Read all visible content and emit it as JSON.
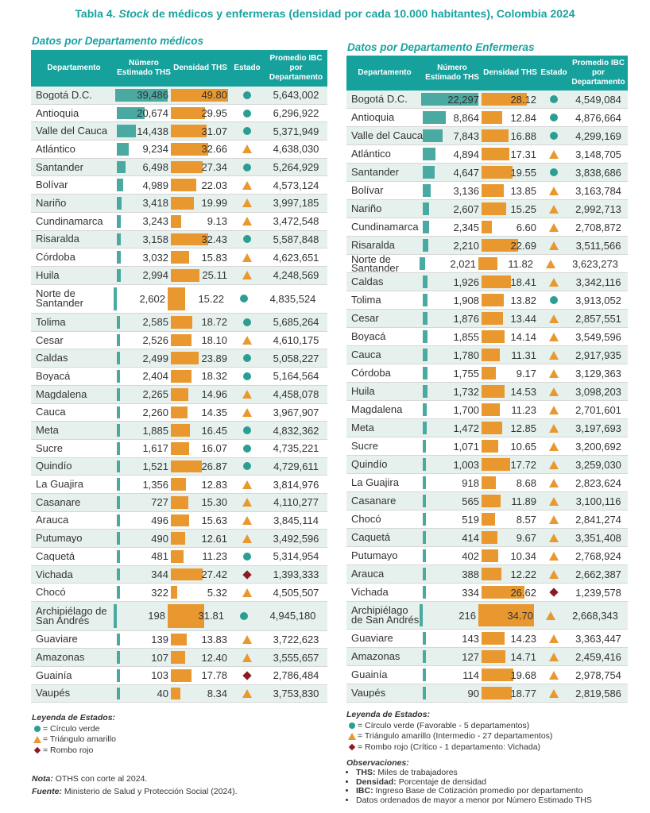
{
  "title": {
    "prefix": "Tabla 4.",
    "italic": "Stock",
    "rest": "de médicos y enfermeras (densidad por cada 10.000 habitantes), Colombia 2024"
  },
  "colors": {
    "teal": "#16a19d",
    "bar_teal": "#4aa9a1",
    "bar_orange": "#e9982f",
    "verde": "#2a9e93",
    "amarillo": "#e9982f",
    "rojo": "#8b1b22"
  },
  "medicos": {
    "subtitle": "Datos por Departamento médicos",
    "headers": {
      "dep": "Departamento",
      "num": "Número Estimado THS",
      "den": "Densidad THS",
      "est": "Estado",
      "ibc": "Promedio IBC por Departamento"
    },
    "max_num": 39486,
    "max_den": 49.8,
    "rows": [
      {
        "dep": "Bogotá D.C.",
        "num": "39,486",
        "n": 39486,
        "den": "49.80",
        "d": 49.8,
        "est": "circulo",
        "ibc": "5,643,002"
      },
      {
        "dep": "Antioquia",
        "num": "20,674",
        "n": 20674,
        "den": "29.95",
        "d": 29.95,
        "est": "circulo",
        "ibc": "6,296,922"
      },
      {
        "dep": "Valle del Cauca",
        "num": "14,438",
        "n": 14438,
        "den": "31.07",
        "d": 31.07,
        "est": "circulo",
        "ibc": "5,371,949"
      },
      {
        "dep": "Atlántico",
        "num": "9,234",
        "n": 9234,
        "den": "32.66",
        "d": 32.66,
        "est": "triangulo",
        "ibc": "4,638,030"
      },
      {
        "dep": "Santander",
        "num": "6,498",
        "n": 6498,
        "den": "27.34",
        "d": 27.34,
        "est": "circulo",
        "ibc": "5,264,929"
      },
      {
        "dep": "Bolívar",
        "num": "4,989",
        "n": 4989,
        "den": "22.03",
        "d": 22.03,
        "est": "triangulo",
        "ibc": "4,573,124"
      },
      {
        "dep": "Nariño",
        "num": "3,418",
        "n": 3418,
        "den": "19.99",
        "d": 19.99,
        "est": "triangulo",
        "ibc": "3,997,185"
      },
      {
        "dep": "Cundinamarca",
        "num": "3,243",
        "n": 3243,
        "den": "9.13",
        "d": 9.13,
        "est": "triangulo",
        "ibc": "3,472,548"
      },
      {
        "dep": "Risaralda",
        "num": "3,158",
        "n": 3158,
        "den": "32.43",
        "d": 32.43,
        "est": "circulo",
        "ibc": "5,587,848"
      },
      {
        "dep": "Córdoba",
        "num": "3,032",
        "n": 3032,
        "den": "15.83",
        "d": 15.83,
        "est": "triangulo",
        "ibc": "4,623,651"
      },
      {
        "dep": "Huila",
        "num": "2,994",
        "n": 2994,
        "den": "25.11",
        "d": 25.11,
        "est": "triangulo",
        "ibc": "4,248,569"
      },
      {
        "dep": "Norte de Santander",
        "num": "2,602",
        "n": 2602,
        "den": "15.22",
        "d": 15.22,
        "est": "circulo",
        "ibc": "4,835,524",
        "tall": true
      },
      {
        "dep": "Tolima",
        "num": "2,585",
        "n": 2585,
        "den": "18.72",
        "d": 18.72,
        "est": "circulo",
        "ibc": "5,685,264"
      },
      {
        "dep": "Cesar",
        "num": "2,526",
        "n": 2526,
        "den": "18.10",
        "d": 18.1,
        "est": "triangulo",
        "ibc": "4,610,175"
      },
      {
        "dep": "Caldas",
        "num": "2,499",
        "n": 2499,
        "den": "23.89",
        "d": 23.89,
        "est": "circulo",
        "ibc": "5,058,227"
      },
      {
        "dep": "Boyacá",
        "num": "2,404",
        "n": 2404,
        "den": "18.32",
        "d": 18.32,
        "est": "circulo",
        "ibc": "5,164,564"
      },
      {
        "dep": "Magdalena",
        "num": "2,265",
        "n": 2265,
        "den": "14.96",
        "d": 14.96,
        "est": "triangulo",
        "ibc": "4,458,078"
      },
      {
        "dep": "Cauca",
        "num": "2,260",
        "n": 2260,
        "den": "14.35",
        "d": 14.35,
        "est": "triangulo",
        "ibc": "3,967,907"
      },
      {
        "dep": "Meta",
        "num": "1,885",
        "n": 1885,
        "den": "16.45",
        "d": 16.45,
        "est": "circulo",
        "ibc": "4,832,362"
      },
      {
        "dep": "Sucre",
        "num": "1,617",
        "n": 1617,
        "den": "16.07",
        "d": 16.07,
        "est": "circulo",
        "ibc": "4,735,221"
      },
      {
        "dep": "Quindío",
        "num": "1,521",
        "n": 1521,
        "den": "26.87",
        "d": 26.87,
        "est": "circulo",
        "ibc": "4,729,611"
      },
      {
        "dep": "La Guajira",
        "num": "1,356",
        "n": 1356,
        "den": "12.83",
        "d": 12.83,
        "est": "triangulo",
        "ibc": "3,814,976"
      },
      {
        "dep": "Casanare",
        "num": "727",
        "n": 727,
        "den": "15.30",
        "d": 15.3,
        "est": "triangulo",
        "ibc": "4,110,277"
      },
      {
        "dep": "Arauca",
        "num": "496",
        "n": 496,
        "den": "15.63",
        "d": 15.63,
        "est": "triangulo",
        "ibc": "3,845,114"
      },
      {
        "dep": "Putumayo",
        "num": "490",
        "n": 490,
        "den": "12.61",
        "d": 12.61,
        "est": "triangulo",
        "ibc": "3,492,596"
      },
      {
        "dep": "Caquetá",
        "num": "481",
        "n": 481,
        "den": "11.23",
        "d": 11.23,
        "est": "circulo",
        "ibc": "5,314,954"
      },
      {
        "dep": "Vichada",
        "num": "344",
        "n": 344,
        "den": "27.42",
        "d": 27.42,
        "est": "rombo",
        "ibc": "1,393,333"
      },
      {
        "dep": "Chocó",
        "num": "322",
        "n": 322,
        "den": "5.32",
        "d": 5.32,
        "est": "triangulo",
        "ibc": "4,505,507"
      },
      {
        "dep": "Archipiélago de San Andrés",
        "num": "198",
        "n": 198,
        "den": "31.81",
        "d": 31.81,
        "est": "circulo",
        "ibc": "4,945,180",
        "tall": true
      },
      {
        "dep": "Guaviare",
        "num": "139",
        "n": 139,
        "den": "13.83",
        "d": 13.83,
        "est": "triangulo",
        "ibc": "3,722,623"
      },
      {
        "dep": "Amazonas",
        "num": "107",
        "n": 107,
        "den": "12.40",
        "d": 12.4,
        "est": "triangulo",
        "ibc": "3,555,657"
      },
      {
        "dep": "Guainía",
        "num": "103",
        "n": 103,
        "den": "17.78",
        "d": 17.78,
        "est": "rombo",
        "ibc": "2,786,484"
      },
      {
        "dep": "Vaupés",
        "num": "40",
        "n": 40,
        "den": "8.34",
        "d": 8.34,
        "est": "triangulo",
        "ibc": "3,753,830"
      }
    ],
    "legend": {
      "title": "Leyenda de Estados:",
      "verde": "= Círculo verde",
      "amarillo": "= Triángulo amarillo",
      "rojo": "= Rombo rojo"
    },
    "nota_label": "Nota:",
    "nota": "OTHS con corte al 2024.",
    "fuente_label": "Fuente:",
    "fuente": "Ministerio de Salud y Protección Social (2024)."
  },
  "enfermeras": {
    "subtitle": "Datos por Departamento Enfermeras",
    "headers": {
      "dep": "Departamento",
      "num": "Número Estimado THS",
      "den": "Densidad THS",
      "est": "Estado",
      "ibc": "Promedio IBC por Departamento"
    },
    "max_num": 22297,
    "max_den": 34.7,
    "rows": [
      {
        "dep": "Bogotá D.C.",
        "num": "22,297",
        "n": 22297,
        "den": "28.12",
        "d": 28.12,
        "est": "circulo",
        "ibc": "4,549,084"
      },
      {
        "dep": "Antioquia",
        "num": "8,864",
        "n": 8864,
        "den": "12.84",
        "d": 12.84,
        "est": "circulo",
        "ibc": "4,876,664"
      },
      {
        "dep": "Valle del Cauca",
        "num": "7,843",
        "n": 7843,
        "den": "16.88",
        "d": 16.88,
        "est": "circulo",
        "ibc": "4,299,169"
      },
      {
        "dep": "Atlántico",
        "num": "4,894",
        "n": 4894,
        "den": "17.31",
        "d": 17.31,
        "est": "triangulo",
        "ibc": "3,148,705"
      },
      {
        "dep": "Santander",
        "num": "4,647",
        "n": 4647,
        "den": "19.55",
        "d": 19.55,
        "est": "circulo",
        "ibc": "3,838,686"
      },
      {
        "dep": "Bolívar",
        "num": "3,136",
        "n": 3136,
        "den": "13.85",
        "d": 13.85,
        "est": "triangulo",
        "ibc": "3,163,784"
      },
      {
        "dep": "Nariño",
        "num": "2,607",
        "n": 2607,
        "den": "15.25",
        "d": 15.25,
        "est": "triangulo",
        "ibc": "2,992,713"
      },
      {
        "dep": "Cundinamarca",
        "num": "2,345",
        "n": 2345,
        "den": "6.60",
        "d": 6.6,
        "est": "triangulo",
        "ibc": "2,708,872"
      },
      {
        "dep": "Risaralda",
        "num": "2,210",
        "n": 2210,
        "den": "22.69",
        "d": 22.69,
        "est": "triangulo",
        "ibc": "3,511,566"
      },
      {
        "dep": "Norte de Santander",
        "num": "2,021",
        "n": 2021,
        "den": "11.82",
        "d": 11.82,
        "est": "triangulo",
        "ibc": "3,623,273",
        "tight": true
      },
      {
        "dep": "Caldas",
        "num": "1,926",
        "n": 1926,
        "den": "18.41",
        "d": 18.41,
        "est": "triangulo",
        "ibc": "3,342,116"
      },
      {
        "dep": "Tolima",
        "num": "1,908",
        "n": 1908,
        "den": "13.82",
        "d": 13.82,
        "est": "circulo",
        "ibc": "3,913,052"
      },
      {
        "dep": "Cesar",
        "num": "1,876",
        "n": 1876,
        "den": "13.44",
        "d": 13.44,
        "est": "triangulo",
        "ibc": "2,857,551"
      },
      {
        "dep": "Boyacá",
        "num": "1,855",
        "n": 1855,
        "den": "14.14",
        "d": 14.14,
        "est": "triangulo",
        "ibc": "3,549,596"
      },
      {
        "dep": "Cauca",
        "num": "1,780",
        "n": 1780,
        "den": "11.31",
        "d": 11.31,
        "est": "triangulo",
        "ibc": "2,917,935"
      },
      {
        "dep": "Córdoba",
        "num": "1,755",
        "n": 1755,
        "den": "9.17",
        "d": 9.17,
        "est": "triangulo",
        "ibc": "3,129,363"
      },
      {
        "dep": "Huila",
        "num": "1,732",
        "n": 1732,
        "den": "14.53",
        "d": 14.53,
        "est": "triangulo",
        "ibc": "3,098,203"
      },
      {
        "dep": "Magdalena",
        "num": "1,700",
        "n": 1700,
        "den": "11.23",
        "d": 11.23,
        "est": "triangulo",
        "ibc": "2,701,601"
      },
      {
        "dep": "Meta",
        "num": "1,472",
        "n": 1472,
        "den": "12.85",
        "d": 12.85,
        "est": "triangulo",
        "ibc": "3,197,693"
      },
      {
        "dep": "Sucre",
        "num": "1,071",
        "n": 1071,
        "den": "10.65",
        "d": 10.65,
        "est": "triangulo",
        "ibc": "3,200,692"
      },
      {
        "dep": "Quindío",
        "num": "1,003",
        "n": 1003,
        "den": "17.72",
        "d": 17.72,
        "est": "triangulo",
        "ibc": "3,259,030"
      },
      {
        "dep": "La Guajira",
        "num": "918",
        "n": 918,
        "den": "8.68",
        "d": 8.68,
        "est": "triangulo",
        "ibc": "2,823,624"
      },
      {
        "dep": "Casanare",
        "num": "565",
        "n": 565,
        "den": "11.89",
        "d": 11.89,
        "est": "triangulo",
        "ibc": "3,100,116"
      },
      {
        "dep": "Chocó",
        "num": "519",
        "n": 519,
        "den": "8.57",
        "d": 8.57,
        "est": "triangulo",
        "ibc": "2,841,274"
      },
      {
        "dep": "Caquetá",
        "num": "414",
        "n": 414,
        "den": "9.67",
        "d": 9.67,
        "est": "triangulo",
        "ibc": "3,351,408"
      },
      {
        "dep": "Putumayo",
        "num": "402",
        "n": 402,
        "den": "10.34",
        "d": 10.34,
        "est": "triangulo",
        "ibc": "2,768,924"
      },
      {
        "dep": "Arauca",
        "num": "388",
        "n": 388,
        "den": "12.22",
        "d": 12.22,
        "est": "triangulo",
        "ibc": "2,662,387"
      },
      {
        "dep": "Vichada",
        "num": "334",
        "n": 334,
        "den": "26.62",
        "d": 26.62,
        "est": "rombo",
        "ibc": "1,239,578"
      },
      {
        "dep": "Archipiélago de San Andrés",
        "num": "216",
        "n": 216,
        "den": "34.70",
        "d": 34.7,
        "est": "triangulo",
        "ibc": "2,668,343",
        "tall": true
      },
      {
        "dep": "Guaviare",
        "num": "143",
        "n": 143,
        "den": "14.23",
        "d": 14.23,
        "est": "triangulo",
        "ibc": "3,363,447"
      },
      {
        "dep": "Amazonas",
        "num": "127",
        "n": 127,
        "den": "14.71",
        "d": 14.71,
        "est": "triangulo",
        "ibc": "2,459,416"
      },
      {
        "dep": "Guainía",
        "num": "114",
        "n": 114,
        "den": "19.68",
        "d": 19.68,
        "est": "triangulo",
        "ibc": "2,978,754"
      },
      {
        "dep": "Vaupés",
        "num": "90",
        "n": 90,
        "den": "18.77",
        "d": 18.77,
        "est": "triangulo",
        "ibc": "2,819,586"
      }
    ],
    "legend": {
      "title": "Leyenda de Estados:",
      "verde": "= Círculo verde (Favorable - 5 departamentos)",
      "amarillo": "= Triángulo amarillo (Intermedio - 27 departamentos)",
      "rojo": "= Rombo rojo (Crítico - 1 departamento: Vichada)"
    },
    "obs": {
      "title": "Observaciones:",
      "items": [
        {
          "label": "THS:",
          "text": "Miles de trabajadores"
        },
        {
          "label": "Densidad:",
          "text": "Porcentaje de densidad"
        },
        {
          "label": "IBC:",
          "text": "Ingreso Base de Cotización promedio por departamento"
        },
        {
          "label": "",
          "text": "Datos ordenados de mayor a menor por Número Estimado THS"
        }
      ]
    }
  }
}
